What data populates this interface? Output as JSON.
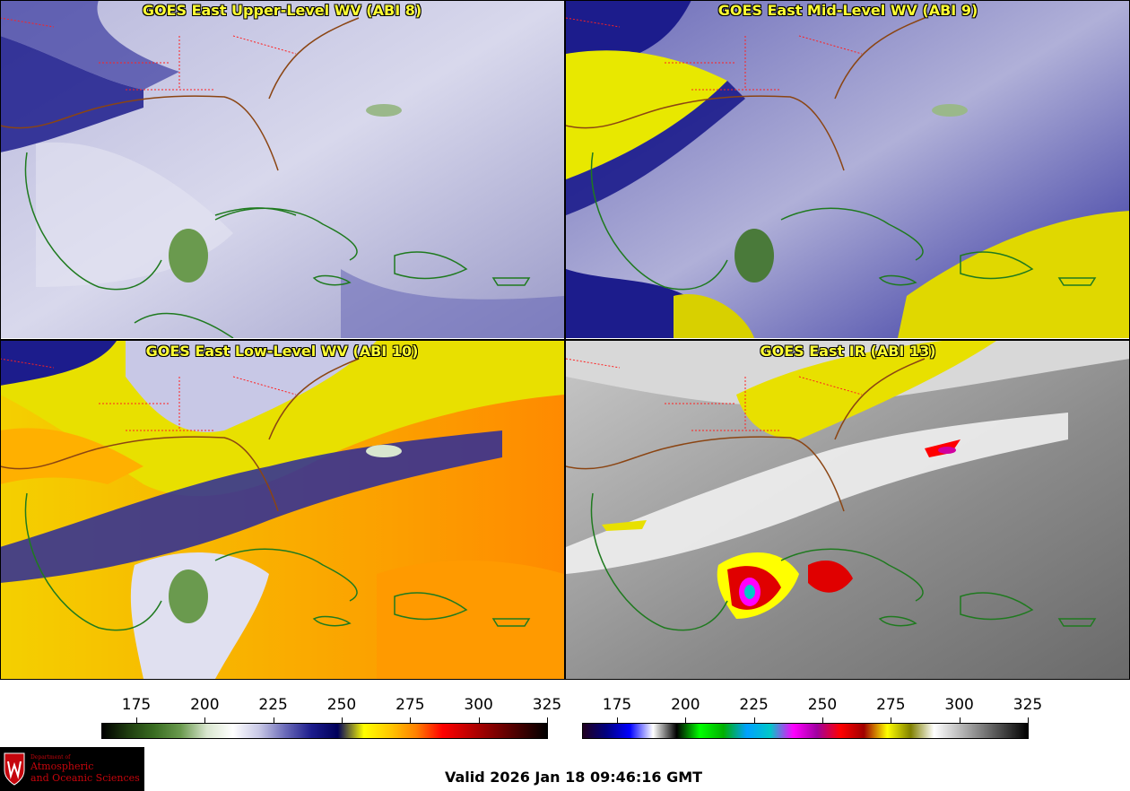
{
  "panels": [
    {
      "title": "GOES East Upper-Level WV (ABI 8)"
    },
    {
      "title": "GOES East Mid-Level WV (ABI 9)"
    },
    {
      "title": "GOES East Low-Level WV (ABI 10)"
    },
    {
      "title": "GOES East IR (ABI 13)"
    }
  ],
  "colorbars": {
    "wv": {
      "ticks": [
        "175",
        "200",
        "225",
        "250",
        "275",
        "300",
        "325"
      ],
      "colors": [
        "#000000",
        "#1f3d0f",
        "#3a6e22",
        "#6a9a4e",
        "#d9e6cf",
        "#ffffff",
        "#c8c8e6",
        "#6a6ab8",
        "#1c1c8c",
        "#00005a",
        "#ffff00",
        "#ffc800",
        "#ff8000",
        "#ff0000",
        "#c00000",
        "#800000",
        "#400000",
        "#000000"
      ]
    },
    "ir": {
      "ticks": [
        "175",
        "200",
        "225",
        "250",
        "275",
        "300",
        "325"
      ],
      "colors": [
        "#200020",
        "#000080",
        "#0000ff",
        "#ffffff",
        "#000000",
        "#00ff00",
        "#00b000",
        "#00a0ff",
        "#00c8c8",
        "#ff00ff",
        "#a000a0",
        "#ff0000",
        "#a00000",
        "#ffff00",
        "#808000",
        "#ffffff",
        "#c0c0c0",
        "#808080",
        "#404040",
        "#000000"
      ]
    }
  },
  "logo": {
    "dept": "Department of",
    "line1": "Atmospheric",
    "line2": "and Oceanic Sciences"
  },
  "footer": {
    "valid": "Valid 2026 Jan 18 09:46:16 GMT"
  }
}
